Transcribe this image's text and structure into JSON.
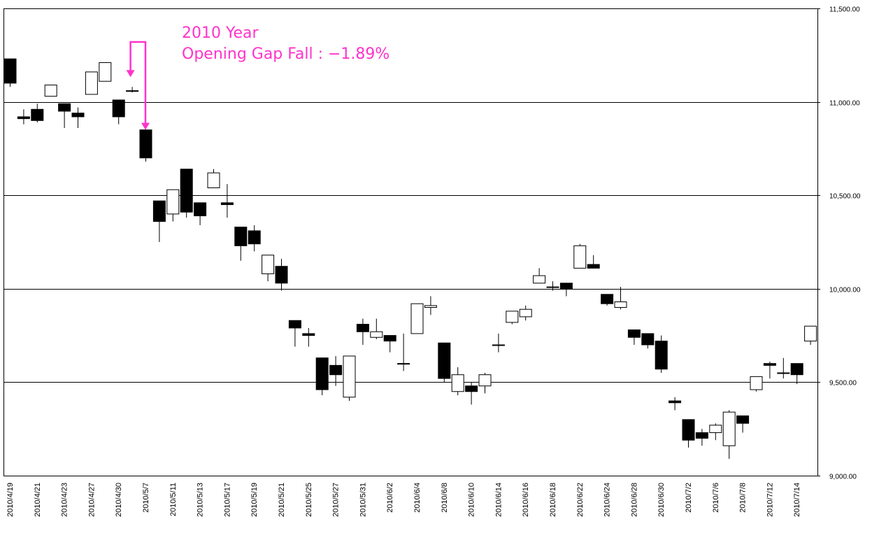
{
  "annotation": {
    "line1": "2010 Year",
    "line2": "Opening Gap Fall : −1.89%",
    "color": "#ff33cc"
  },
  "chart_data": {
    "type": "candlestick",
    "title": "",
    "xlabel": "",
    "ylabel": "",
    "ylim": [
      9000,
      11500
    ],
    "y_ticks": [
      9000,
      9500,
      10000,
      10500,
      11000,
      11500
    ],
    "y_tick_labels": [
      "9,000.00",
      "9,500.00",
      "10,000.00",
      "10,500.00",
      "11,000.00",
      "11,500.00"
    ],
    "grid": true,
    "up_color": "#ffffff",
    "down_color": "#000000",
    "x_tick_labels": [
      "2010/4/19",
      "2010/4/21",
      "2010/4/23",
      "2010/4/27",
      "2010/4/30",
      "2010/5/7",
      "2010/5/11",
      "2010/5/13",
      "2010/5/17",
      "2010/5/19",
      "2010/5/21",
      "2010/5/25",
      "2010/5/27",
      "2010/5/31",
      "2010/6/2",
      "2010/6/4",
      "2010/6/8",
      "2010/6/10",
      "2010/6/14",
      "2010/6/16",
      "2010/6/18",
      "2010/6/22",
      "2010/6/24",
      "2010/6/28",
      "2010/6/30",
      "2010/7/2",
      "2010/7/6",
      "2010/7/8",
      "2010/7/12",
      "2010/7/14"
    ],
    "candles": [
      {
        "open": 11230,
        "high": 11230,
        "low": 11080,
        "close": 11100
      },
      {
        "open": 10920,
        "high": 10960,
        "low": 10880,
        "close": 10910
      },
      {
        "open": 10960,
        "high": 10990,
        "low": 10890,
        "close": 10900
      },
      {
        "open": 11030,
        "high": 11090,
        "low": 11030,
        "close": 11090
      },
      {
        "open": 10990,
        "high": 10990,
        "low": 10860,
        "close": 10950
      },
      {
        "open": 10940,
        "high": 10970,
        "low": 10860,
        "close": 10920
      },
      {
        "open": 11040,
        "high": 11160,
        "low": 11040,
        "close": 11160
      },
      {
        "open": 11110,
        "high": 11210,
        "low": 11110,
        "close": 11210
      },
      {
        "open": 11010,
        "high": 11010,
        "low": 10880,
        "close": 10920
      },
      {
        "open": 11060,
        "high": 11080,
        "low": 11050,
        "close": 11060
      },
      {
        "open": 10850,
        "high": 10850,
        "low": 10680,
        "close": 10700
      },
      {
        "open": 10470,
        "high": 10470,
        "low": 10250,
        "close": 10360
      },
      {
        "open": 10400,
        "high": 10530,
        "low": 10360,
        "close": 10530
      },
      {
        "open": 10640,
        "high": 10640,
        "low": 10380,
        "close": 10410
      },
      {
        "open": 10460,
        "high": 10460,
        "low": 10340,
        "close": 10390
      },
      {
        "open": 10540,
        "high": 10640,
        "low": 10540,
        "close": 10620
      },
      {
        "open": 10460,
        "high": 10560,
        "low": 10380,
        "close": 10450
      },
      {
        "open": 10330,
        "high": 10330,
        "low": 10150,
        "close": 10230
      },
      {
        "open": 10310,
        "high": 10340,
        "low": 10200,
        "close": 10240
      },
      {
        "open": 10080,
        "high": 10180,
        "low": 10040,
        "close": 10180
      },
      {
        "open": 10120,
        "high": 10160,
        "low": 9990,
        "close": 10030
      },
      {
        "open": 9830,
        "high": 9830,
        "low": 9690,
        "close": 9790
      },
      {
        "open": 9760,
        "high": 9790,
        "low": 9690,
        "close": 9750
      },
      {
        "open": 9630,
        "high": 9630,
        "low": 9430,
        "close": 9460
      },
      {
        "open": 9590,
        "high": 9640,
        "low": 9480,
        "close": 9540
      },
      {
        "open": 9420,
        "high": 9640,
        "low": 9400,
        "close": 9640
      },
      {
        "open": 9810,
        "high": 9840,
        "low": 9700,
        "close": 9770
      },
      {
        "open": 9740,
        "high": 9840,
        "low": 9730,
        "close": 9770
      },
      {
        "open": 9750,
        "high": 9750,
        "low": 9660,
        "close": 9720
      },
      {
        "open": 9600,
        "high": 9760,
        "low": 9560,
        "close": 9600
      },
      {
        "open": 9760,
        "high": 9920,
        "low": 9760,
        "close": 9920
      },
      {
        "open": 9900,
        "high": 9960,
        "low": 9860,
        "close": 9910
      },
      {
        "open": 9710,
        "high": 9710,
        "low": 9500,
        "close": 9520
      },
      {
        "open": 9450,
        "high": 9580,
        "low": 9430,
        "close": 9540
      },
      {
        "open": 9480,
        "high": 9500,
        "low": 9380,
        "close": 9450
      },
      {
        "open": 9480,
        "high": 9550,
        "low": 9440,
        "close": 9540
      },
      {
        "open": 9700,
        "high": 9760,
        "low": 9660,
        "close": 9700
      },
      {
        "open": 9820,
        "high": 9880,
        "low": 9810,
        "close": 9880
      },
      {
        "open": 9850,
        "high": 9910,
        "low": 9830,
        "close": 9890
      },
      {
        "open": 10030,
        "high": 10110,
        "low": 10030,
        "close": 10070
      },
      {
        "open": 10010,
        "high": 10040,
        "low": 9990,
        "close": 10010
      },
      {
        "open": 10030,
        "high": 10030,
        "low": 9960,
        "close": 10000
      },
      {
        "open": 10110,
        "high": 10240,
        "low": 10110,
        "close": 10230
      },
      {
        "open": 10130,
        "high": 10180,
        "low": 10110,
        "close": 10110
      },
      {
        "open": 9970,
        "high": 9970,
        "low": 9910,
        "close": 9920
      },
      {
        "open": 9900,
        "high": 10010,
        "low": 9890,
        "close": 9930
      },
      {
        "open": 9780,
        "high": 9780,
        "low": 9700,
        "close": 9740
      },
      {
        "open": 9760,
        "high": 9760,
        "low": 9680,
        "close": 9700
      },
      {
        "open": 9720,
        "high": 9750,
        "low": 9550,
        "close": 9570
      },
      {
        "open": 9400,
        "high": 9420,
        "low": 9350,
        "close": 9390
      },
      {
        "open": 9300,
        "high": 9300,
        "low": 9150,
        "close": 9190
      },
      {
        "open": 9230,
        "high": 9250,
        "low": 9160,
        "close": 9200
      },
      {
        "open": 9230,
        "high": 9280,
        "low": 9190,
        "close": 9270
      },
      {
        "open": 9160,
        "high": 9350,
        "low": 9090,
        "close": 9340
      },
      {
        "open": 9320,
        "high": 9320,
        "low": 9230,
        "close": 9280
      },
      {
        "open": 9460,
        "high": 9530,
        "low": 9450,
        "close": 9530
      },
      {
        "open": 9600,
        "high": 9610,
        "low": 9520,
        "close": 9590
      },
      {
        "open": 9550,
        "high": 9630,
        "low": 9520,
        "close": 9550
      },
      {
        "open": 9600,
        "high": 9600,
        "low": 9490,
        "close": 9540
      },
      {
        "open": 9720,
        "high": 9800,
        "low": 9700,
        "close": 9800
      }
    ]
  }
}
